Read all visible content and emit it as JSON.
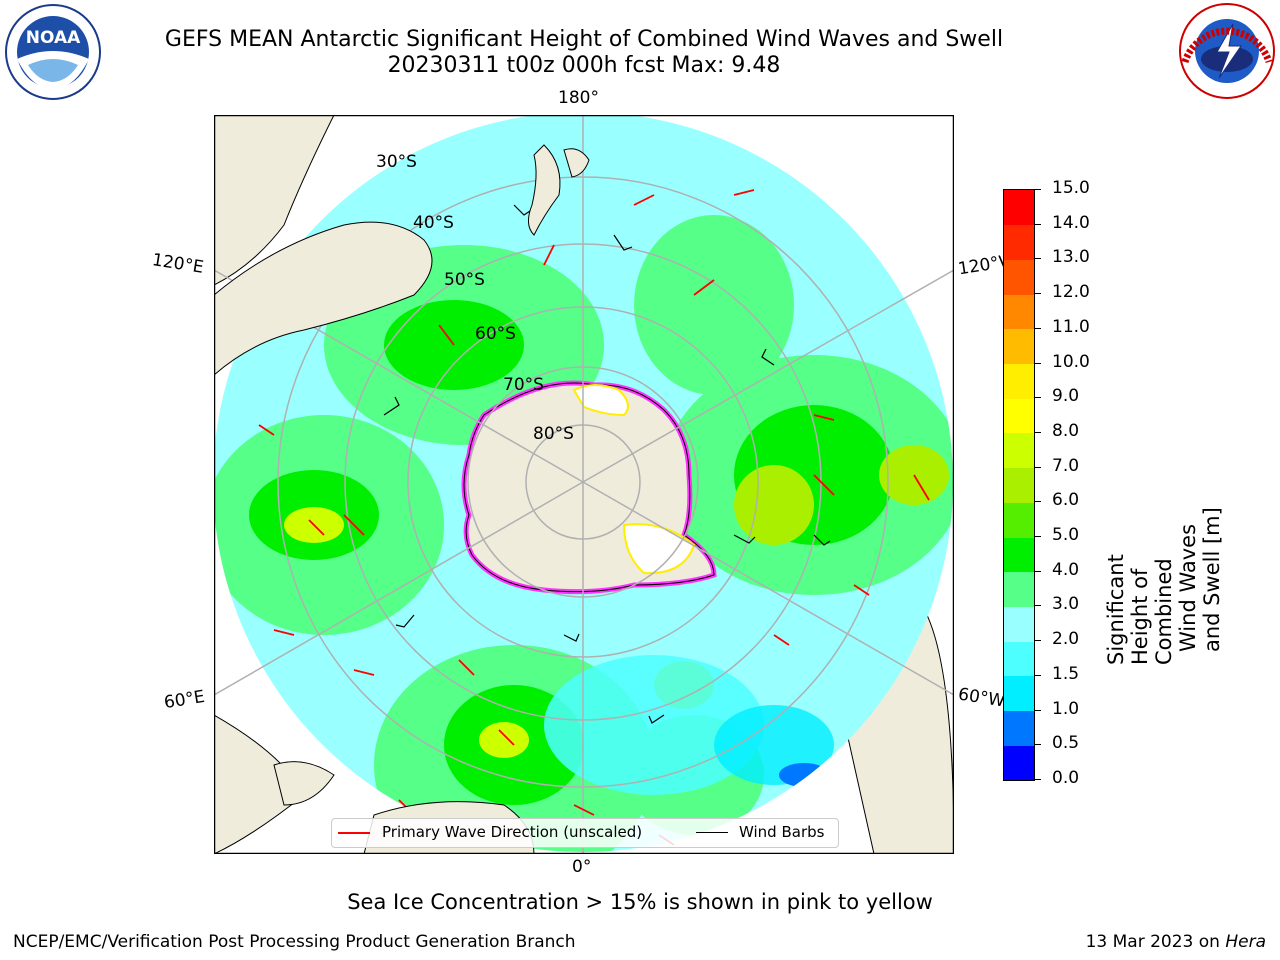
{
  "title": {
    "line1": "GEFS MEAN Antarctic Significant Height of Combined Wind Waves and Swell",
    "line2": "20230311 t00z 000h fcst   Max: 9.48"
  },
  "logos": {
    "left": {
      "name": "noaa-logo",
      "text": "NOAA"
    },
    "right": {
      "name": "nws-logo",
      "text": "NATIONAL WEATHER SERVICE"
    }
  },
  "map": {
    "projection": "south-polar-stereographic",
    "longitude_labels": {
      "top": "180°",
      "bottom": "0°",
      "upper_left": "120°E",
      "upper_right": "120°W",
      "lower_left": "60°E",
      "lower_right": "60°W"
    },
    "latitude_labels": [
      "30°S",
      "40°S",
      "50°S",
      "60°S",
      "70°S",
      "80°S"
    ],
    "colors": {
      "land": "#efecdc",
      "sea_ice_low": "#ff33ff",
      "sea_ice_high": "#ffff66",
      "wave_arrow": "#ff0000",
      "wind_barb": "#000000",
      "gridline": "#b0b0b0"
    }
  },
  "legend": {
    "primary_wave": "Primary Wave Direction (unscaled)",
    "wind_barbs": "Wind Barbs"
  },
  "colorbar": {
    "label_line1": "Significant Height of Combined",
    "label_line2": "Wind Waves and Swell [m]",
    "ticks": [
      "0.0",
      "0.5",
      "1.0",
      "1.5",
      "2.0",
      "3.0",
      "4.0",
      "5.0",
      "6.0",
      "7.0",
      "8.0",
      "9.0",
      "10.0",
      "11.0",
      "12.0",
      "13.0",
      "14.0",
      "15.0"
    ],
    "colors": [
      "#0000ff",
      "#0077ff",
      "#00eeff",
      "#4dffff",
      "#99ffff",
      "#55ff88",
      "#00ee00",
      "#55ee00",
      "#aaee00",
      "#ccff00",
      "#ffff00",
      "#ffee00",
      "#ffbb00",
      "#ff8800",
      "#ff5500",
      "#ff2a00",
      "#ff0000"
    ]
  },
  "caption": "Sea Ice Concentration > 15% is shown in pink to yellow",
  "footer": {
    "left": "NCEP/EMC/Verification Post Processing Product Generation Branch",
    "right_date": "13 Mar 2023 on ",
    "right_host": "Hera"
  }
}
